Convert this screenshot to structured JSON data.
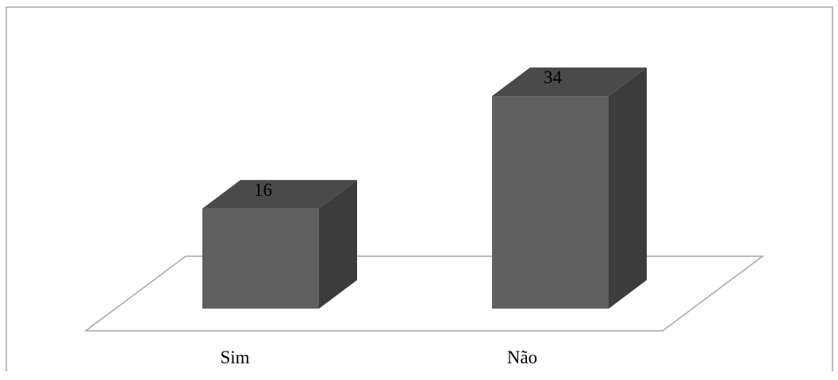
{
  "chart_data": {
    "type": "bar",
    "style": "3d-column",
    "categories": [
      "Sim",
      "Não"
    ],
    "values": [
      16,
      34
    ],
    "title": "",
    "xlabel": "",
    "ylabel": "",
    "ylim": [
      0,
      40
    ],
    "grid": false,
    "legend": "none",
    "data_labels": true,
    "colors": {
      "bar_front": "#606060",
      "bar_top": "#4a4a4a",
      "bar_side": "#3c3c3c",
      "floor_line": "#a6a6a6",
      "frame_line": "#a6a6a6",
      "text": "#000000"
    }
  }
}
